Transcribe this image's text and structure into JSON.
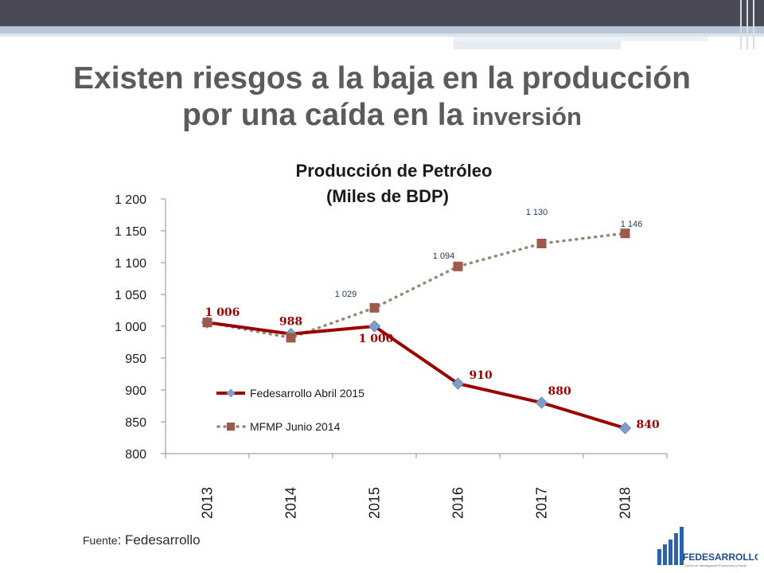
{
  "header": {
    "line1": "Existen riesgos a la baja en la producción",
    "line2_main": "por una caída en la ",
    "line2_small": "inversión"
  },
  "footer": {
    "source_label": "Fuente",
    "source_value": ": Fedesarrollo"
  },
  "logo": {
    "text": "FEDESARROLLO",
    "tagline": "Centro de Investigación Económica y Social",
    "icon": "fedesarrollo-logo"
  },
  "chart_data": {
    "type": "line",
    "title": "Producción de Petróleo",
    "subtitle": "(Miles de BDP)",
    "categories": [
      "2013",
      "2014",
      "2015",
      "2016",
      "2017",
      "2018"
    ],
    "ylim": [
      800,
      1200
    ],
    "yticks": [
      "800",
      "850",
      "900",
      "950",
      "1 000",
      "1 050",
      "1 100",
      "1 150",
      "1 200"
    ],
    "ytick_values": [
      800,
      850,
      900,
      950,
      1000,
      1050,
      1100,
      1150,
      1200
    ],
    "grid": false,
    "legend_position": "bottom-left",
    "series": [
      {
        "name": "Fedesarrollo Abril 2015",
        "values": [
          1006,
          988,
          1000,
          910,
          880,
          840
        ],
        "labels": [
          "1 006",
          "988",
          "1 000",
          "910",
          "880",
          "840"
        ],
        "color": "#990000",
        "marker_color": "#7f9ec8",
        "marker": "diamond",
        "style": "solid"
      },
      {
        "name": "MFMP Junio 2014",
        "values": [
          1006,
          982,
          1029,
          1094,
          1130,
          1146
        ],
        "labels": [
          "",
          "",
          "1 029",
          "1 094",
          "1 130",
          "1 146"
        ],
        "color": "#9b8676",
        "marker_color": "#9e5a48",
        "marker": "square",
        "style": "dotted"
      }
    ]
  }
}
